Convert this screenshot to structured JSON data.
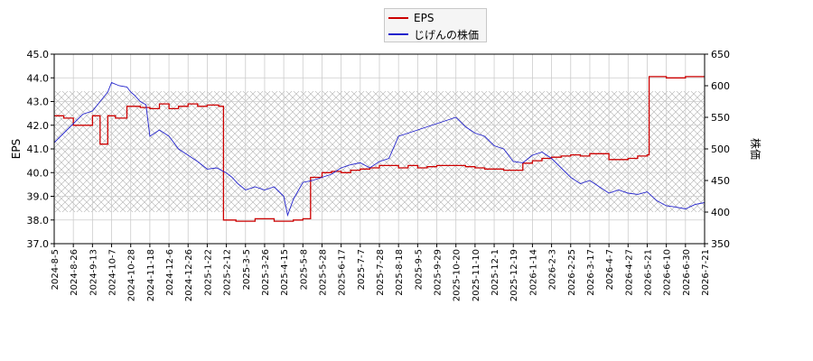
{
  "chart_data": {
    "type": "line",
    "title": "",
    "xlabel": "",
    "ylabel_left": "EPS",
    "ylabel_right": "株価",
    "legend_position": "top-center",
    "grid": true,
    "hatched_band": true,
    "left_axis": {
      "ylim": [
        37.0,
        45.0
      ],
      "ticks": [
        "37.0",
        "38.0",
        "39.0",
        "40.0",
        "41.0",
        "42.0",
        "43.0",
        "44.0",
        "45.0"
      ]
    },
    "right_axis": {
      "ylim": [
        350,
        650
      ],
      "ticks": [
        "350",
        "400",
        "450",
        "500",
        "550",
        "600",
        "650"
      ]
    },
    "x_ticks": [
      "2024-8-5",
      "2024-8-26",
      "2024-9-13",
      "2024-10-7",
      "2024-10-28",
      "2024-11-18",
      "2024-12-6",
      "2024-12-26",
      "2025-1-22",
      "2025-2-12",
      "2025-3-5",
      "2025-3-26",
      "2025-4-15",
      "2025-5-8",
      "2025-5-28",
      "2025-6-17",
      "2025-7-7",
      "2025-7-28",
      "2025-8-18",
      "2025-9-5",
      "2025-9-29",
      "2025-10-20",
      "2025-11-10",
      "2025-12-1",
      "2025-12-19",
      "2026-1-14",
      "2026-2-3",
      "2026-2-25",
      "2026-3-17",
      "2026-4-7",
      "2026-4-27",
      "2026-5-21",
      "2026-6-10",
      "2026-6-30",
      "2026-7-21"
    ],
    "series": [
      {
        "name": "EPS",
        "axis": "left",
        "color": "#cc0000",
        "points": [
          [
            0,
            42.4
          ],
          [
            0.5,
            42.3
          ],
          [
            1.0,
            42.0
          ],
          [
            1.5,
            42.0
          ],
          [
            2.0,
            42.4
          ],
          [
            2.4,
            41.2
          ],
          [
            2.8,
            42.4
          ],
          [
            3.2,
            42.3
          ],
          [
            3.8,
            42.8
          ],
          [
            4.5,
            42.75
          ],
          [
            5.0,
            42.7
          ],
          [
            5.5,
            42.9
          ],
          [
            6.0,
            42.7
          ],
          [
            6.5,
            42.8
          ],
          [
            7.0,
            42.9
          ],
          [
            7.5,
            42.8
          ],
          [
            8.0,
            42.85
          ],
          [
            8.6,
            42.8
          ],
          [
            8.85,
            38.0
          ],
          [
            9.5,
            37.95
          ],
          [
            10.5,
            38.05
          ],
          [
            11.5,
            37.95
          ],
          [
            12.5,
            38.0
          ],
          [
            13.0,
            38.05
          ],
          [
            13.35,
            38.05
          ],
          [
            13.4,
            39.8
          ],
          [
            14.0,
            40.0
          ],
          [
            14.5,
            40.05
          ],
          [
            15.0,
            40.0
          ],
          [
            15.5,
            40.1
          ],
          [
            16.0,
            40.15
          ],
          [
            16.5,
            40.2
          ],
          [
            17.0,
            40.3
          ],
          [
            17.5,
            40.3
          ],
          [
            18.0,
            40.2
          ],
          [
            18.5,
            40.3
          ],
          [
            19.0,
            40.2
          ],
          [
            19.5,
            40.25
          ],
          [
            20.0,
            40.3
          ],
          [
            20.5,
            40.3
          ],
          [
            21.0,
            40.3
          ],
          [
            21.5,
            40.25
          ],
          [
            22.0,
            40.2
          ],
          [
            22.5,
            40.15
          ],
          [
            23.0,
            40.15
          ],
          [
            23.5,
            40.1
          ],
          [
            24.0,
            40.1
          ],
          [
            24.5,
            40.4
          ],
          [
            25.0,
            40.5
          ],
          [
            25.5,
            40.6
          ],
          [
            26.0,
            40.65
          ],
          [
            26.5,
            40.7
          ],
          [
            27.0,
            40.75
          ],
          [
            27.5,
            40.7
          ],
          [
            28.0,
            40.8
          ],
          [
            28.5,
            40.8
          ],
          [
            29.0,
            40.55
          ],
          [
            29.5,
            40.55
          ],
          [
            30.0,
            40.6
          ],
          [
            30.5,
            40.7
          ],
          [
            31.0,
            40.75
          ],
          [
            31.1,
            44.05
          ],
          [
            32.0,
            44.0
          ],
          [
            33.0,
            44.05
          ],
          [
            34.0,
            44.05
          ],
          [
            34.8,
            44.0
          ]
        ]
      },
      {
        "name": "じげんの株価",
        "axis": "right",
        "color": "#2222cc",
        "points": [
          [
            0,
            510
          ],
          [
            0.5,
            525
          ],
          [
            1.0,
            540
          ],
          [
            1.5,
            555
          ],
          [
            2.0,
            560
          ],
          [
            2.4,
            575
          ],
          [
            2.8,
            590
          ],
          [
            3.0,
            605
          ],
          [
            3.4,
            600
          ],
          [
            3.8,
            598
          ],
          [
            4.0,
            590
          ],
          [
            4.2,
            585
          ],
          [
            4.5,
            575
          ],
          [
            4.8,
            570
          ],
          [
            5.0,
            520
          ],
          [
            5.5,
            530
          ],
          [
            6.0,
            520
          ],
          [
            6.5,
            500
          ],
          [
            7.0,
            490
          ],
          [
            7.5,
            480
          ],
          [
            8.0,
            468
          ],
          [
            8.5,
            470
          ],
          [
            9.0,
            462
          ],
          [
            9.3,
            455
          ],
          [
            9.6,
            445
          ],
          [
            10.0,
            435
          ],
          [
            10.5,
            440
          ],
          [
            11.0,
            435
          ],
          [
            11.5,
            440
          ],
          [
            12.0,
            425
          ],
          [
            12.2,
            395
          ],
          [
            12.5,
            420
          ],
          [
            13.0,
            447
          ],
          [
            13.5,
            450
          ],
          [
            14.0,
            455
          ],
          [
            14.5,
            460
          ],
          [
            15.0,
            470
          ],
          [
            15.5,
            475
          ],
          [
            16.0,
            478
          ],
          [
            16.5,
            470
          ],
          [
            17.0,
            480
          ],
          [
            17.5,
            485
          ],
          [
            18.0,
            520
          ],
          [
            18.5,
            525
          ],
          [
            19.0,
            530
          ],
          [
            19.5,
            535
          ],
          [
            20.0,
            540
          ],
          [
            20.5,
            545
          ],
          [
            21.0,
            550
          ],
          [
            21.5,
            535
          ],
          [
            22.0,
            525
          ],
          [
            22.5,
            520
          ],
          [
            23.0,
            505
          ],
          [
            23.5,
            500
          ],
          [
            24.0,
            480
          ],
          [
            24.5,
            478
          ],
          [
            25.0,
            490
          ],
          [
            25.5,
            495
          ],
          [
            26.0,
            485
          ],
          [
            26.5,
            470
          ],
          [
            27.0,
            455
          ],
          [
            27.5,
            445
          ],
          [
            28.0,
            450
          ],
          [
            28.5,
            440
          ],
          [
            29.0,
            430
          ],
          [
            29.5,
            435
          ],
          [
            30.0,
            430
          ],
          [
            30.5,
            428
          ],
          [
            31.0,
            432
          ],
          [
            31.5,
            418
          ],
          [
            32.0,
            410
          ],
          [
            32.5,
            408
          ],
          [
            33.0,
            405
          ],
          [
            33.5,
            412
          ],
          [
            34.0,
            415
          ],
          [
            34.5,
            420
          ],
          [
            34.8,
            425
          ]
        ]
      }
    ]
  }
}
